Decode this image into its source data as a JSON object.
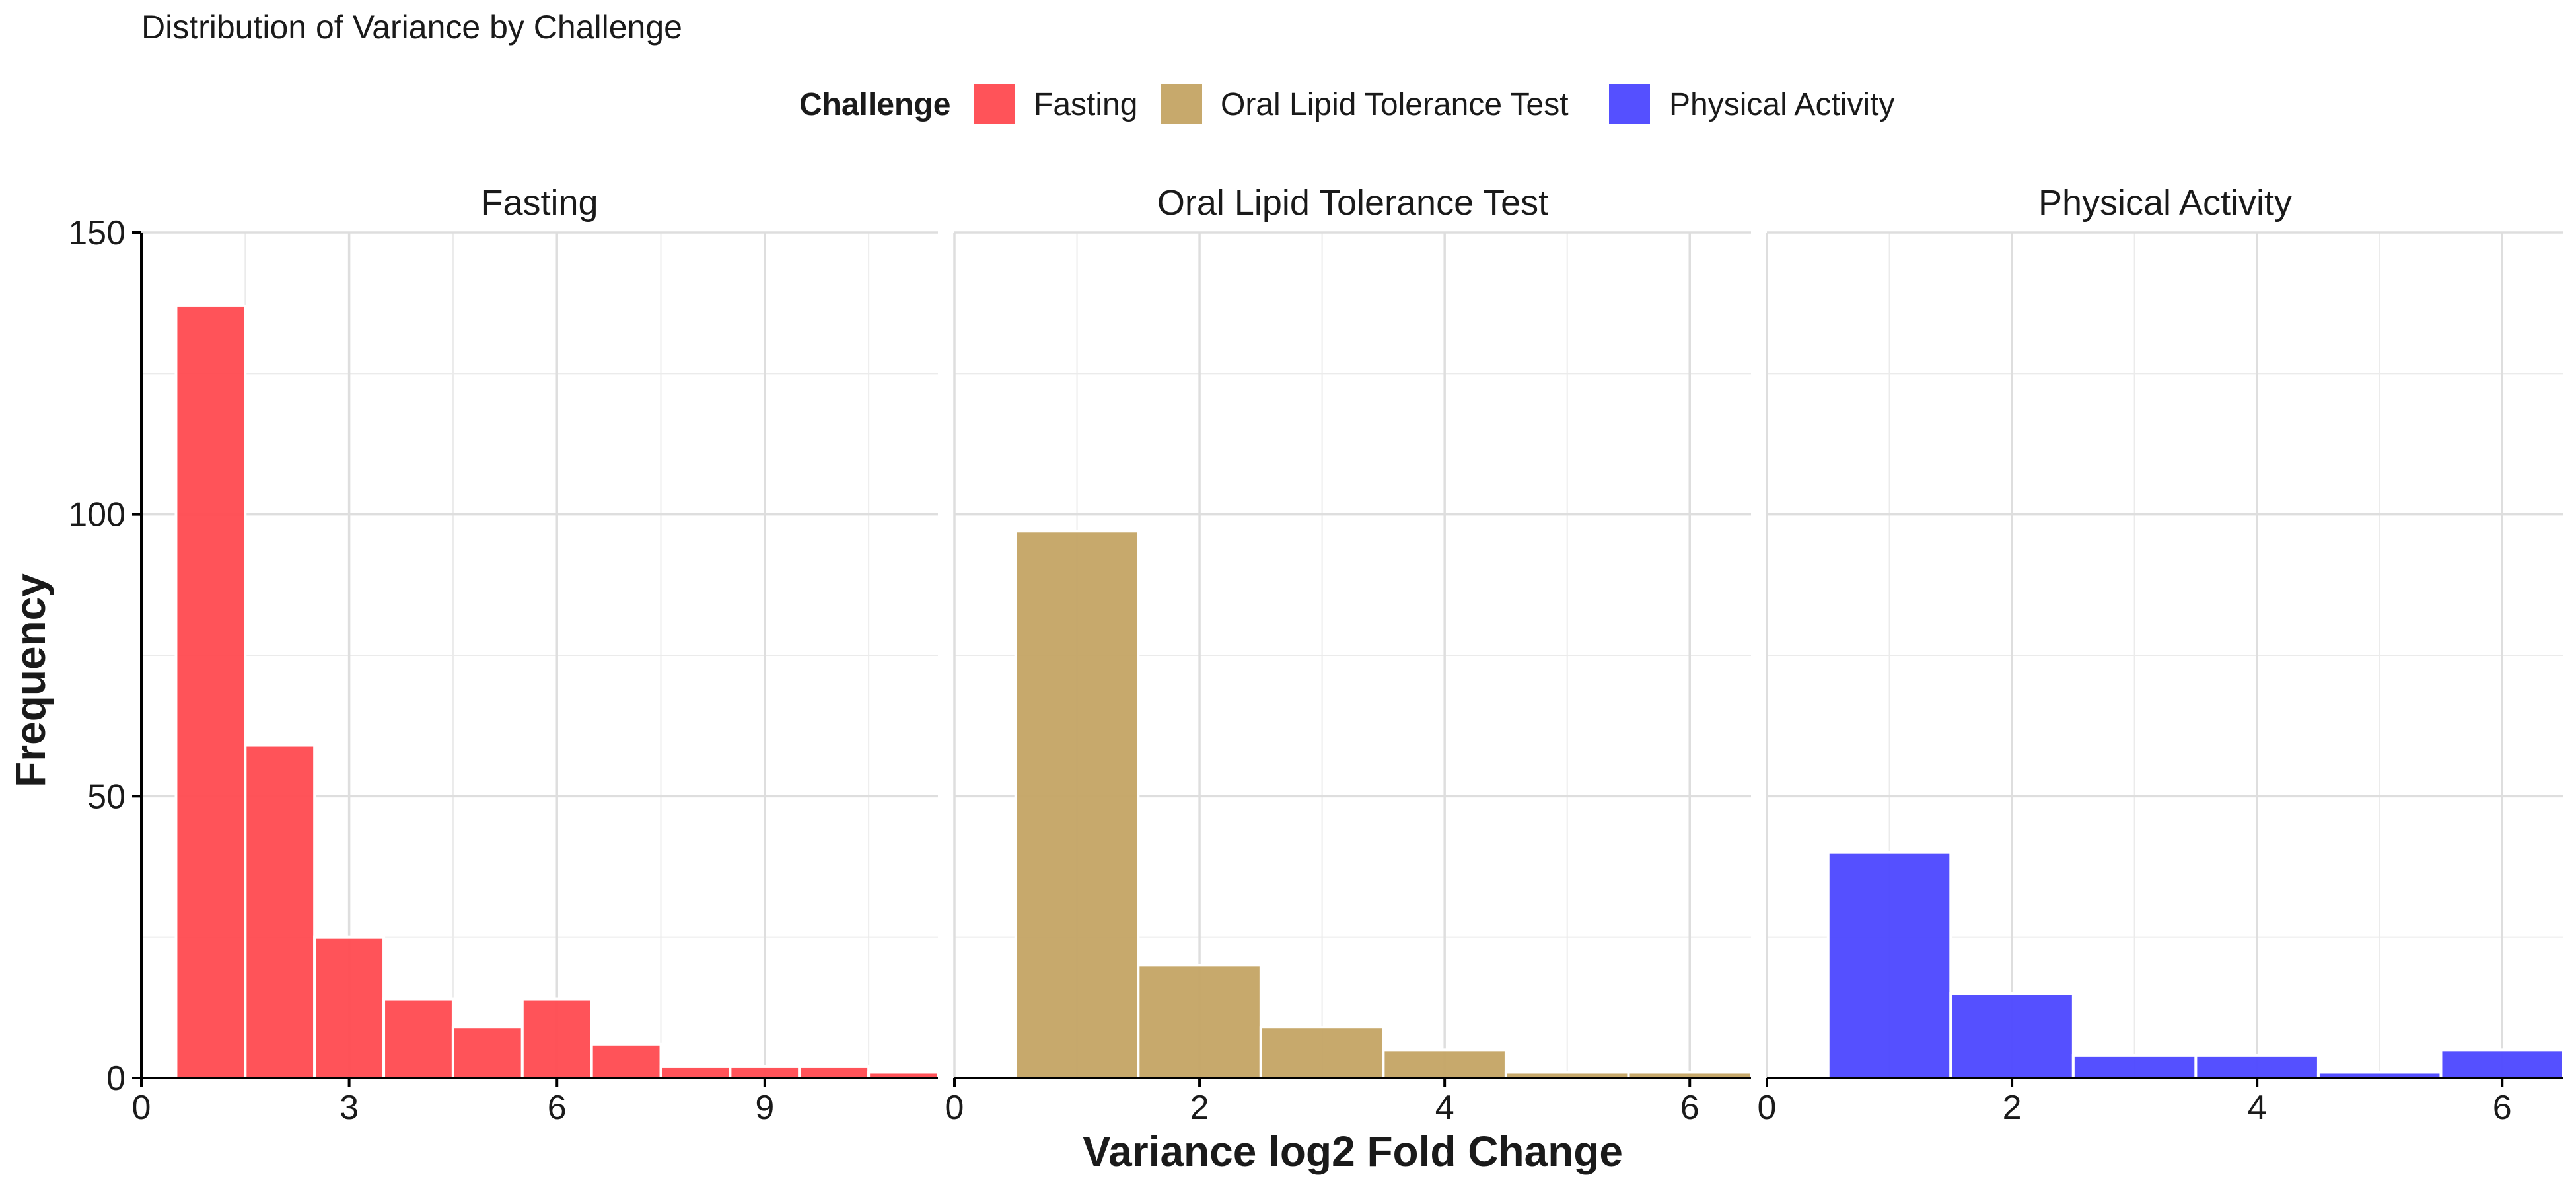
{
  "chart_data": {
    "type": "bar",
    "title": "Distribution of Variance by Challenge",
    "xlabel": "Variance log2 Fold Change",
    "ylabel": "Frequency",
    "ylim": [
      0,
      150
    ],
    "yticks": [
      0,
      50,
      100,
      150
    ],
    "grid": true,
    "legend": {
      "title": "Challenge",
      "position": "top",
      "entries": [
        {
          "label": "Fasting",
          "color": "#FF4A50"
        },
        {
          "label": "Oral Lipid Tolerance Test",
          "color": "#C4A464"
        },
        {
          "label": "Physical Activity",
          "color": "#4C47FF"
        }
      ]
    },
    "panels": [
      {
        "title": "Fasting",
        "color": "#FF4A50",
        "xlim": [
          0,
          11.5
        ],
        "xticks": [
          0,
          3,
          6,
          9
        ],
        "bin_width": 1,
        "bins": [
          {
            "x": 1,
            "count": 137
          },
          {
            "x": 2,
            "count": 59
          },
          {
            "x": 3,
            "count": 25
          },
          {
            "x": 4,
            "count": 14
          },
          {
            "x": 5,
            "count": 9
          },
          {
            "x": 6,
            "count": 14
          },
          {
            "x": 7,
            "count": 6
          },
          {
            "x": 8,
            "count": 2
          },
          {
            "x": 9,
            "count": 2
          },
          {
            "x": 10,
            "count": 2
          },
          {
            "x": 11,
            "count": 1
          }
        ]
      },
      {
        "title": "Oral Lipid Tolerance Test",
        "color": "#C4A464",
        "xlim": [
          0,
          6.5
        ],
        "xticks": [
          0,
          2,
          4,
          6
        ],
        "bin_width": 1,
        "bins": [
          {
            "x": 1,
            "count": 97
          },
          {
            "x": 2,
            "count": 20
          },
          {
            "x": 3,
            "count": 9
          },
          {
            "x": 4,
            "count": 5
          },
          {
            "x": 5,
            "count": 1
          },
          {
            "x": 6,
            "count": 1
          }
        ]
      },
      {
        "title": "Physical Activity",
        "color": "#4C47FF",
        "xlim": [
          0,
          6.5
        ],
        "xticks": [
          0,
          2,
          4,
          6
        ],
        "bin_width": 1,
        "bins": [
          {
            "x": 1,
            "count": 40
          },
          {
            "x": 2,
            "count": 15
          },
          {
            "x": 3,
            "count": 4
          },
          {
            "x": 4,
            "count": 4
          },
          {
            "x": 5,
            "count": 1
          },
          {
            "x": 6,
            "count": 5
          }
        ]
      }
    ]
  }
}
